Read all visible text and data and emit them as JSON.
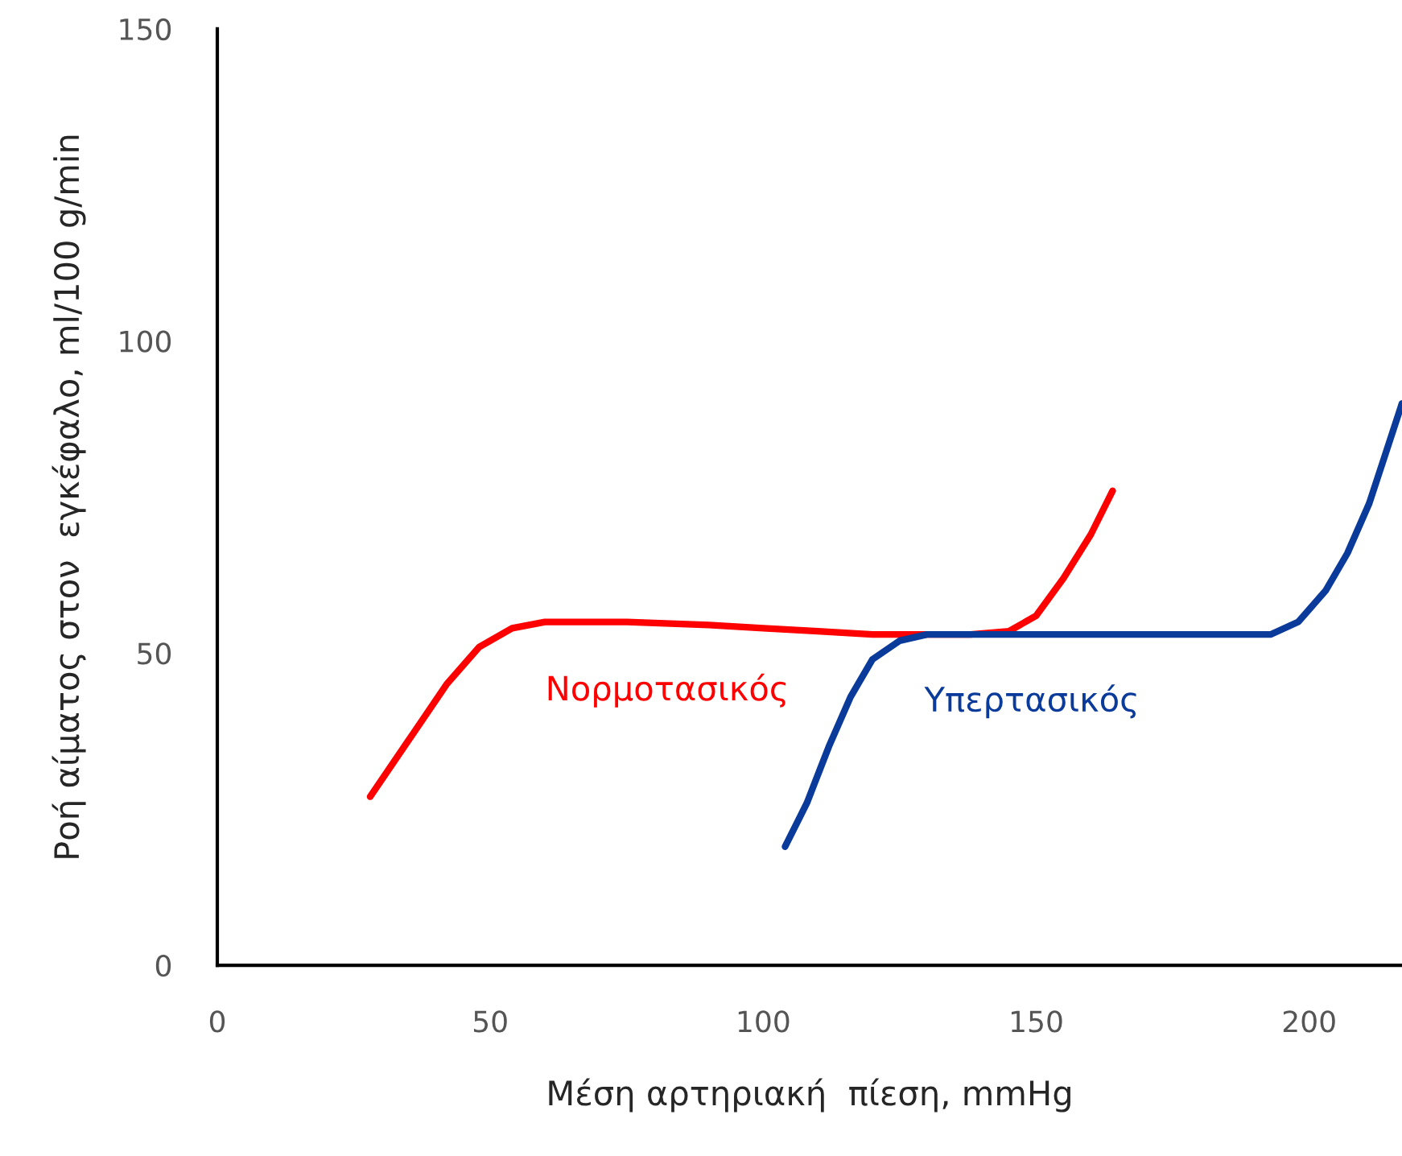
{
  "chart_data": {
    "type": "line",
    "xlabel": "Μέση αρτηριακή  πίεση, mmHg",
    "ylabel": "Ροή αίματος στον  εγκέφαλο, ml/100 g/min",
    "xlim": [
      0,
      217
    ],
    "ylim": [
      0,
      150
    ],
    "xticks": [
      0,
      50,
      100,
      150,
      200
    ],
    "yticks": [
      0,
      50,
      100,
      150
    ],
    "grid": false,
    "legend": false,
    "series": [
      {
        "name": "Νορμοτασικός",
        "color": "#ff0000",
        "x": [
          28,
          35,
          42,
          48,
          54,
          60,
          66,
          75,
          90,
          100,
          110,
          120,
          130,
          138,
          145,
          150,
          155,
          160,
          164
        ],
        "values": [
          27,
          36,
          45,
          51,
          54,
          55,
          55,
          55,
          54.5,
          54,
          53.5,
          53,
          53,
          53,
          53.5,
          56,
          62,
          69,
          76
        ]
      },
      {
        "name": "Υπερτασικός",
        "color": "#0a3a9a",
        "x": [
          104,
          108,
          112,
          116,
          120,
          125,
          130,
          140,
          160,
          180,
          193,
          198,
          203,
          207,
          211,
          214,
          217
        ],
        "values": [
          19,
          26,
          35,
          43,
          49,
          52,
          53,
          53,
          53,
          53,
          53,
          55,
          60,
          66,
          74,
          82,
          90
        ]
      }
    ]
  }
}
